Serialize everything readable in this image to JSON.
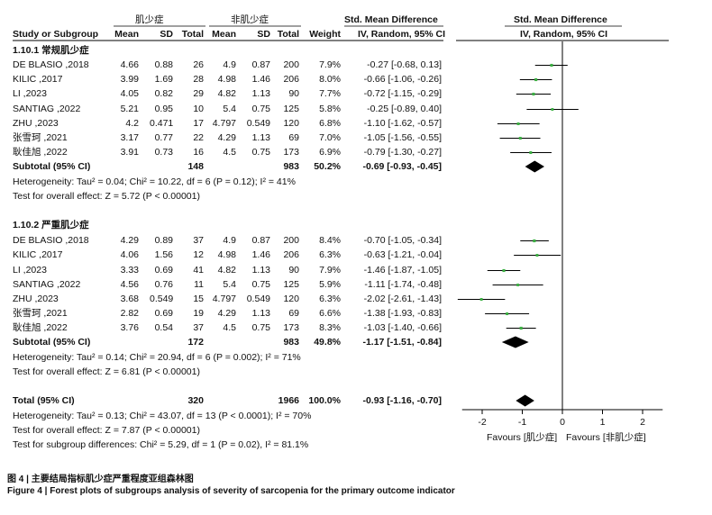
{
  "header": {
    "group_exp": "肌少症",
    "group_ctrl": "非肌少症",
    "smd_left": "Std. Mean Difference",
    "smd_right": "Std. Mean Difference",
    "col_study": "Study or Subgroup",
    "col_mean1": "Mean",
    "col_sd1": "SD",
    "col_total1": "Total",
    "col_mean2": "Mean",
    "col_sd2": "SD",
    "col_total2": "Total",
    "col_weight": "Weight",
    "col_method_left": "IV, Random, 95% CI",
    "col_method_right": "IV, Random, 95% CI"
  },
  "subgroups": [
    {
      "title": "1.10.1 常规肌少症",
      "rows": [
        {
          "study": "DE BLASIO ,2018",
          "m1": "4.66",
          "sd1": "0.88",
          "n1": "26",
          "m2": "4.9",
          "sd2": "0.87",
          "n2": "200",
          "w": "7.9%",
          "ci": "-0.27 [-0.68, 0.13]"
        },
        {
          "study": "KILIC ,2017",
          "m1": "3.99",
          "sd1": "1.69",
          "n1": "28",
          "m2": "4.98",
          "sd2": "1.46",
          "n2": "206",
          "w": "8.0%",
          "ci": "-0.66 [-1.06, -0.26]"
        },
        {
          "study": "LI ,2023",
          "m1": "4.05",
          "sd1": "0.82",
          "n1": "29",
          "m2": "4.82",
          "sd2": "1.13",
          "n2": "90",
          "w": "7.7%",
          "ci": "-0.72 [-1.15, -0.29]"
        },
        {
          "study": "SANTIAG ,2022",
          "m1": "5.21",
          "sd1": "0.95",
          "n1": "10",
          "m2": "5.4",
          "sd2": "0.75",
          "n2": "125",
          "w": "5.8%",
          "ci": "-0.25 [-0.89, 0.40]"
        },
        {
          "study": "ZHU ,2023",
          "m1": "4.2",
          "sd1": "0.471",
          "n1": "17",
          "m2": "4.797",
          "sd2": "0.549",
          "n2": "120",
          "w": "6.8%",
          "ci": "-1.10 [-1.62, -0.57]"
        },
        {
          "study": "张雪珂 ,2021",
          "m1": "3.17",
          "sd1": "0.77",
          "n1": "22",
          "m2": "4.29",
          "sd2": "1.13",
          "n2": "69",
          "w": "7.0%",
          "ci": "-1.05 [-1.56, -0.55]"
        },
        {
          "study": "耿佳旭 ,2022",
          "m1": "3.91",
          "sd1": "0.73",
          "n1": "16",
          "m2": "4.5",
          "sd2": "0.75",
          "n2": "173",
          "w": "6.9%",
          "ci": "-0.79 [-1.30, -0.27]"
        }
      ],
      "subtotal": {
        "label": "Subtotal (95% CI)",
        "n1": "148",
        "n2": "983",
        "w": "50.2%",
        "ci": "-0.69 [-0.93, -0.45]"
      },
      "heterogeneity": "Heterogeneity: Tau² = 0.04; Chi² = 10.22, df = 6 (P = 0.12); I² = 41%",
      "overall": "Test for overall effect: Z = 5.72 (P < 0.00001)"
    },
    {
      "title": "1.10.2 严重肌少症",
      "rows": [
        {
          "study": "DE BLASIO ,2018",
          "m1": "4.29",
          "sd1": "0.89",
          "n1": "37",
          "m2": "4.9",
          "sd2": "0.87",
          "n2": "200",
          "w": "8.4%",
          "ci": "-0.70 [-1.05, -0.34]"
        },
        {
          "study": "KILIC ,2017",
          "m1": "4.06",
          "sd1": "1.56",
          "n1": "12",
          "m2": "4.98",
          "sd2": "1.46",
          "n2": "206",
          "w": "6.3%",
          "ci": "-0.63 [-1.21, -0.04]"
        },
        {
          "study": "LI ,2023",
          "m1": "3.33",
          "sd1": "0.69",
          "n1": "41",
          "m2": "4.82",
          "sd2": "1.13",
          "n2": "90",
          "w": "7.9%",
          "ci": "-1.46 [-1.87, -1.05]"
        },
        {
          "study": "SANTIAG ,2022",
          "m1": "4.56",
          "sd1": "0.76",
          "n1": "11",
          "m2": "5.4",
          "sd2": "0.75",
          "n2": "125",
          "w": "5.9%",
          "ci": "-1.11 [-1.74, -0.48]"
        },
        {
          "study": "ZHU ,2023",
          "m1": "3.68",
          "sd1": "0.549",
          "n1": "15",
          "m2": "4.797",
          "sd2": "0.549",
          "n2": "120",
          "w": "6.3%",
          "ci": "-2.02 [-2.61, -1.43]"
        },
        {
          "study": "张雪珂 ,2021",
          "m1": "2.82",
          "sd1": "0.69",
          "n1": "19",
          "m2": "4.29",
          "sd2": "1.13",
          "n2": "69",
          "w": "6.6%",
          "ci": "-1.38 [-1.93, -0.83]"
        },
        {
          "study": "耿佳旭 ,2022",
          "m1": "3.76",
          "sd1": "0.54",
          "n1": "37",
          "m2": "4.5",
          "sd2": "0.75",
          "n2": "173",
          "w": "8.3%",
          "ci": "-1.03 [-1.40, -0.66]"
        }
      ],
      "subtotal": {
        "label": "Subtotal (95% CI)",
        "n1": "172",
        "n2": "983",
        "w": "49.8%",
        "ci": "-1.17 [-1.51, -0.84]"
      },
      "heterogeneity": "Heterogeneity: Tau² = 0.14; Chi² = 20.94, df = 6 (P = 0.002); I² = 71%",
      "overall": "Test for overall effect: Z = 6.81 (P < 0.00001)"
    }
  ],
  "total": {
    "label": "Total (95% CI)",
    "n1": "320",
    "n2": "1966",
    "w": "100.0%",
    "ci": "-0.93 [-1.16, -0.70]"
  },
  "footer": {
    "heterogeneity": "Heterogeneity: Tau² = 0.13; Chi² = 43.07, df = 13 (P < 0.0001); I² = 70%",
    "overall": "Test for overall effect: Z = 7.87 (P < 0.00001)",
    "subgroup_diff": "Test for subgroup differences: Chi² = 5.29, df = 1 (P = 0.02), I² = 81.1%"
  },
  "figure_caption_cn": "图 4 | 主要结局指标肌少症严重程度亚组森林图",
  "figure_caption_en": "Figure 4 | Forest plots of subgroups analysis of severity of sarcopenia for the primary outcome indicator",
  "chart_data": {
    "type": "forest",
    "xlim": [
      -2.5,
      2.5
    ],
    "ticks": [
      -2,
      -1,
      0,
      1,
      2
    ],
    "tick_labels": [
      "-2",
      "-1",
      "0",
      "1",
      "2"
    ],
    "favours_left": "Favours [肌少症]",
    "favours_right": "Favours [非肌少症]",
    "marker_color": "#3cb043",
    "diamond_color": "#000000",
    "studies": [
      [
        {
          "est": -0.27,
          "lo": -0.68,
          "hi": 0.13
        },
        {
          "est": -0.66,
          "lo": -1.06,
          "hi": -0.26
        },
        {
          "est": -0.72,
          "lo": -1.15,
          "hi": -0.29
        },
        {
          "est": -0.25,
          "lo": -0.89,
          "hi": 0.4
        },
        {
          "est": -1.1,
          "lo": -1.62,
          "hi": -0.57
        },
        {
          "est": -1.05,
          "lo": -1.56,
          "hi": -0.55
        },
        {
          "est": -0.79,
          "lo": -1.3,
          "hi": -0.27
        }
      ],
      [
        {
          "est": -0.7,
          "lo": -1.05,
          "hi": -0.34
        },
        {
          "est": -0.63,
          "lo": -1.21,
          "hi": -0.04
        },
        {
          "est": -1.46,
          "lo": -1.87,
          "hi": -1.05
        },
        {
          "est": -1.11,
          "lo": -1.74,
          "hi": -0.48
        },
        {
          "est": -2.02,
          "lo": -2.61,
          "hi": -1.43
        },
        {
          "est": -1.38,
          "lo": -1.93,
          "hi": -0.83
        },
        {
          "est": -1.03,
          "lo": -1.4,
          "hi": -0.66
        }
      ]
    ],
    "subtotals": [
      {
        "est": -0.69,
        "lo": -0.93,
        "hi": -0.45
      },
      {
        "est": -1.17,
        "lo": -1.51,
        "hi": -0.84
      }
    ],
    "total": {
      "est": -0.93,
      "lo": -1.16,
      "hi": -0.7
    }
  }
}
